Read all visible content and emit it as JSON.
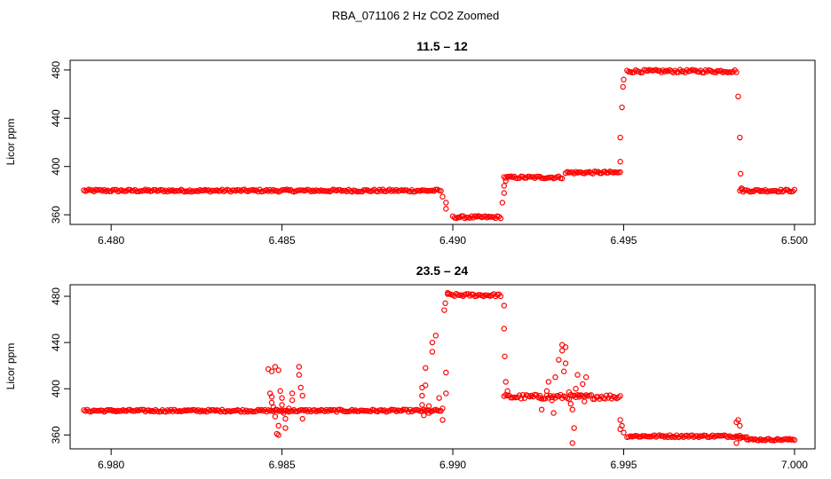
{
  "figure": {
    "title": "RBA_071106  2 Hz CO2 Zoomed"
  },
  "chart_data": [
    {
      "type": "scatter",
      "title": "11.5 – 12",
      "xlabel": "",
      "ylabel": "Licor ppm",
      "xlim": [
        6.4788,
        6.5006
      ],
      "ylim": [
        352,
        488
      ],
      "xticks": [
        6.48,
        6.485,
        6.49,
        6.495,
        6.5
      ],
      "xtick_labels": [
        "6.480",
        "6.485",
        "6.490",
        "6.495",
        "6.500"
      ],
      "yticks": [
        360,
        400,
        440,
        480
      ],
      "ytick_labels": [
        "360",
        "400",
        "440",
        "480"
      ],
      "segments": [
        {
          "x0": 6.4792,
          "x1": 6.48965,
          "y": 380,
          "noise": 1.0
        },
        {
          "x0": 6.49,
          "x1": 6.4914,
          "y": 358,
          "noise": 1.0
        },
        {
          "x0": 6.4915,
          "x1": 6.4932,
          "y": 391,
          "noise": 1.0
        },
        {
          "x0": 6.4933,
          "x1": 6.4949,
          "y": 395,
          "noise": 1.0
        },
        {
          "x0": 6.4951,
          "x1": 6.4983,
          "y": 479,
          "noise": 1.2
        },
        {
          "x0": 6.4984,
          "x1": 6.5,
          "y": 380,
          "noise": 1.0
        }
      ],
      "points": [
        [
          6.4897,
          375
        ],
        [
          6.4898,
          370
        ],
        [
          6.4898,
          365
        ],
        [
          6.49145,
          370
        ],
        [
          6.4915,
          378
        ],
        [
          6.4915,
          384
        ],
        [
          6.49155,
          388
        ],
        [
          6.4949,
          404
        ],
        [
          6.4949,
          424
        ],
        [
          6.49495,
          449
        ],
        [
          6.49498,
          466
        ],
        [
          6.495,
          472
        ],
        [
          6.49835,
          458
        ],
        [
          6.4984,
          424
        ],
        [
          6.49842,
          394
        ],
        [
          6.49845,
          382
        ]
      ]
    },
    {
      "type": "scatter",
      "title": "23.5 – 24",
      "xlabel": "",
      "ylabel": "Licor ppm",
      "xlim": [
        6.9788,
        7.0006
      ],
      "ylim": [
        348,
        490
      ],
      "xticks": [
        6.98,
        6.985,
        6.99,
        6.995,
        7.0
      ],
      "xtick_labels": [
        "6.980",
        "6.985",
        "6.990",
        "6.995",
        "7.000"
      ],
      "yticks": [
        360,
        400,
        440,
        480
      ],
      "ytick_labels": [
        "360",
        "400",
        "440",
        "480"
      ],
      "segments": [
        {
          "x0": 6.9792,
          "x1": 6.98965,
          "y": 381,
          "noise": 1.0
        },
        {
          "x0": 6.98985,
          "x1": 6.9914,
          "y": 481,
          "noise": 1.2
        },
        {
          "x0": 6.9915,
          "x1": 6.9949,
          "y": 393,
          "noise": 2.0
        },
        {
          "x0": 6.9951,
          "x1": 6.9986,
          "y": 359,
          "noise": 1.0
        },
        {
          "x0": 6.9986,
          "x1": 7.0,
          "y": 356,
          "noise": 0.8
        }
      ],
      "points": [
        [
          6.9846,
          417
        ],
        [
          6.9847,
          415
        ],
        [
          6.9848,
          419
        ],
        [
          6.9849,
          416
        ],
        [
          6.98465,
          396
        ],
        [
          6.9847,
          393
        ],
        [
          6.9847,
          388
        ],
        [
          6.98475,
          384
        ],
        [
          6.9848,
          376
        ],
        [
          6.98485,
          361
        ],
        [
          6.9849,
          360
        ],
        [
          6.9849,
          368
        ],
        [
          6.98495,
          398
        ],
        [
          6.985,
          392
        ],
        [
          6.985,
          386
        ],
        [
          6.98505,
          379
        ],
        [
          6.9851,
          374
        ],
        [
          6.9851,
          366
        ],
        [
          6.9852,
          383
        ],
        [
          6.9853,
          390
        ],
        [
          6.9853,
          396
        ],
        [
          6.9855,
          419
        ],
        [
          6.9855,
          412
        ],
        [
          6.98555,
          401
        ],
        [
          6.9856,
          394
        ],
        [
          6.9856,
          374
        ],
        [
          6.9891,
          401
        ],
        [
          6.9891,
          394
        ],
        [
          6.9891,
          386
        ],
        [
          6.98915,
          377
        ],
        [
          6.9892,
          418
        ],
        [
          6.9892,
          403
        ],
        [
          6.9893,
          379
        ],
        [
          6.9893,
          385
        ],
        [
          6.9894,
          432
        ],
        [
          6.9894,
          440
        ],
        [
          6.9895,
          446
        ],
        [
          6.9896,
          392
        ],
        [
          6.9897,
          373
        ],
        [
          6.9897,
          383
        ],
        [
          6.9898,
          414
        ],
        [
          6.9898,
          396
        ],
        [
          6.98975,
          468
        ],
        [
          6.98978,
          474
        ],
        [
          6.98985,
          483
        ],
        [
          6.9915,
          472
        ],
        [
          6.9915,
          452
        ],
        [
          6.99152,
          428
        ],
        [
          6.99155,
          406
        ],
        [
          6.9916,
          398
        ],
        [
          6.993,
          410
        ],
        [
          6.9931,
          425
        ],
        [
          6.9932,
          433
        ],
        [
          6.9932,
          438
        ],
        [
          6.99325,
          415
        ],
        [
          6.9933,
          422
        ],
        [
          6.9933,
          436
        ],
        [
          6.9934,
          397
        ],
        [
          6.99345,
          387
        ],
        [
          6.9935,
          382
        ],
        [
          6.9935,
          353
        ],
        [
          6.99355,
          366
        ],
        [
          6.9936,
          400
        ],
        [
          6.99365,
          412
        ],
        [
          6.9937,
          393
        ],
        [
          6.9938,
          404
        ],
        [
          6.99385,
          389
        ],
        [
          6.9939,
          410
        ],
        [
          6.9929,
          390
        ],
        [
          6.99295,
          379
        ],
        [
          6.99275,
          398
        ],
        [
          6.9928,
          406
        ],
        [
          6.99255,
          394
        ],
        [
          6.9926,
          382
        ],
        [
          6.9949,
          373
        ],
        [
          6.9949,
          365
        ],
        [
          6.99495,
          368
        ],
        [
          6.995,
          362
        ],
        [
          6.9983,
          371
        ],
        [
          6.99835,
          373
        ],
        [
          6.9984,
          368
        ],
        [
          6.9984,
          357
        ],
        [
          6.9983,
          353
        ]
      ]
    }
  ]
}
